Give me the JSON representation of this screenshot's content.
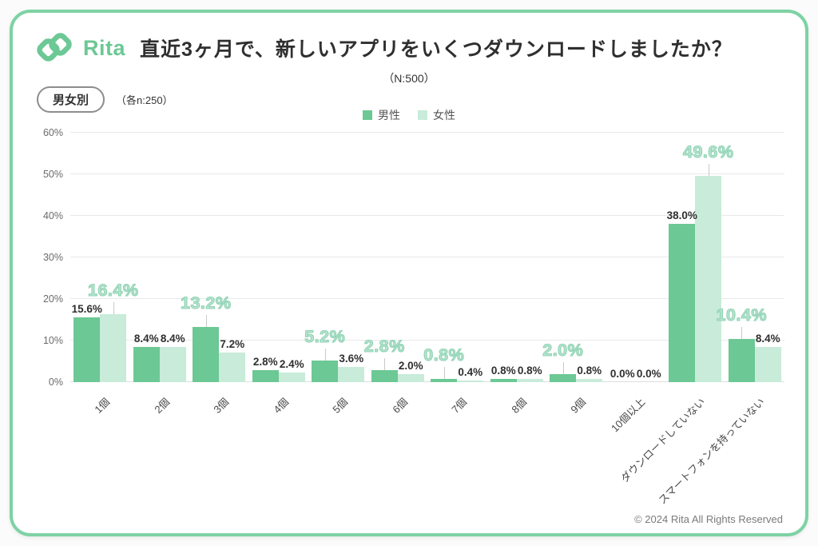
{
  "colors": {
    "accent": "#6cc894",
    "card_border": "#7ed2a4",
    "male": "#6cc894",
    "female": "#c8ebda",
    "highlight_fill": "#b9e5d1",
    "highlight_stroke": "#8fd2b3"
  },
  "header": {
    "logo_text": "Rita",
    "title": "直近3ヶ月で、新しいアプリをいくつダウンロードしましたか？",
    "sample_note": "（N:500）",
    "segment_badge": "男女別",
    "segment_note": "（各n:250）"
  },
  "legend": {
    "items": [
      {
        "label": "男性",
        "color": "#6cc894"
      },
      {
        "label": "女性",
        "color": "#c8ebda"
      }
    ]
  },
  "chart_data": {
    "type": "bar",
    "title": "直近3ヶ月で、新しいアプリをいくつダウンロードしましたか？",
    "sample_label": "（N:500）",
    "segment": "男女別（各n:250）",
    "categories": [
      "1個",
      "2個",
      "3個",
      "4個",
      "5個",
      "6個",
      "7個",
      "8個",
      "9個",
      "10個以上",
      "ダウンロードしていない",
      "スマートフォンを持っていない"
    ],
    "series": [
      {
        "name": "男性",
        "color": "#6cc894",
        "values": [
          15.6,
          8.4,
          13.2,
          2.8,
          5.2,
          2.8,
          0.8,
          0.8,
          2.0,
          0.0,
          38.0,
          10.4
        ]
      },
      {
        "name": "女性",
        "color": "#c8ebda",
        "values": [
          16.4,
          8.4,
          7.2,
          2.4,
          3.6,
          2.0,
          0.4,
          0.8,
          0.8,
          0.0,
          49.6,
          8.4
        ]
      }
    ],
    "highlighted_series_per_category": [
      1,
      -1,
      0,
      -1,
      0,
      0,
      0,
      -1,
      0,
      -1,
      1,
      0
    ],
    "value_suffix": "%",
    "ylim": [
      0,
      60
    ],
    "yticks": [
      "0%",
      "10%",
      "20%",
      "30%",
      "40%",
      "50%",
      "60%"
    ],
    "grid": true,
    "legend_position": "top"
  },
  "footer": {
    "copyright": "© 2024 Rita All Rights Reserved"
  }
}
